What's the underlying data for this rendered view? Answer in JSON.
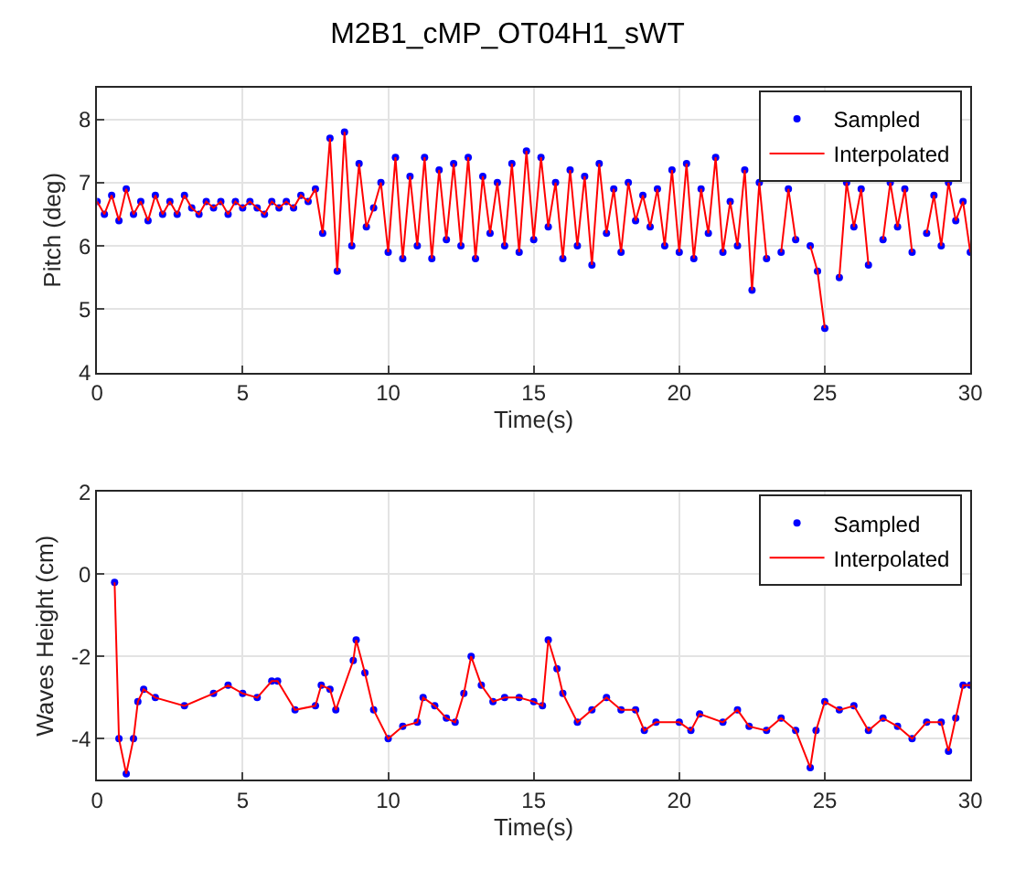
{
  "chart_data": [
    {
      "type": "line",
      "title": "M2B1_cMP_OT04H1_sWT",
      "xlabel": "Time(s)",
      "ylabel": "Pitch (deg)",
      "x": [
        0,
        0.25,
        0.5,
        0.75,
        1,
        1.25,
        1.5,
        1.75,
        2,
        2.25,
        2.5,
        2.75,
        3,
        3.25,
        3.5,
        3.75,
        4,
        4.25,
        4.5,
        4.75,
        5,
        5.25,
        5.5,
        5.75,
        6,
        6.25,
        6.5,
        6.75,
        7,
        7.25,
        7.5,
        7.75,
        8,
        8.25,
        8.5,
        8.75,
        9,
        9.25,
        9.5,
        9.75,
        10,
        10.25,
        10.5,
        10.75,
        11,
        11.25,
        11.5,
        11.75,
        12,
        12.25,
        12.5,
        12.75,
        13,
        13.25,
        13.5,
        13.75,
        14,
        14.25,
        14.5,
        14.75,
        15,
        15.25,
        15.5,
        15.75,
        16,
        16.25,
        16.5,
        16.75,
        17,
        17.25,
        17.5,
        17.75,
        18,
        18.25,
        18.5,
        18.75,
        19,
        19.25,
        19.5,
        19.75,
        20,
        20.25,
        20.5,
        20.75,
        21,
        21.25,
        21.5,
        21.75,
        22,
        22.25,
        22.5,
        22.75,
        23,
        23.25,
        23.5,
        23.75,
        24,
        24.25,
        24.5,
        24.75,
        25,
        25.25,
        25.5,
        25.75,
        26,
        26.25,
        26.5,
        26.75,
        27,
        27.25,
        27.5,
        27.75,
        28,
        28.25,
        28.5,
        28.75,
        29,
        29.25,
        29.5,
        29.75,
        30
      ],
      "series": [
        {
          "name": "Sampled",
          "type": "scatter",
          "marker": "circle",
          "color": "#0000ff",
          "values": [
            6.7,
            6.5,
            6.8,
            6.4,
            6.9,
            6.5,
            6.7,
            6.4,
            6.8,
            6.5,
            6.7,
            6.5,
            6.8,
            6.6,
            6.5,
            6.7,
            6.6,
            6.7,
            6.5,
            6.7,
            6.6,
            6.7,
            6.6,
            6.5,
            6.7,
            6.6,
            6.7,
            6.6,
            6.8,
            6.7,
            6.9,
            6.2,
            7.7,
            5.6,
            7.8,
            6.0,
            7.3,
            6.3,
            6.6,
            7.0,
            5.9,
            7.4,
            5.8,
            7.1,
            6.0,
            7.4,
            5.8,
            7.2,
            6.1,
            7.3,
            6.0,
            7.4,
            5.8,
            7.1,
            6.2,
            7.0,
            6.0,
            7.3,
            5.9,
            7.5,
            6.1,
            7.4,
            6.3,
            7.0,
            5.8,
            7.2,
            6.0,
            7.1,
            5.7,
            7.3,
            6.2,
            6.9,
            5.9,
            7.0,
            6.4,
            6.8,
            6.3,
            6.9,
            6.0,
            7.2,
            5.9,
            7.3,
            5.8,
            6.9,
            6.2,
            7.4,
            5.9,
            6.7,
            6.0,
            7.2,
            5.3,
            7.0,
            5.8,
            null,
            5.9,
            6.9,
            6.1,
            null,
            6.0,
            5.6,
            4.7,
            null,
            5.5,
            7.0,
            6.3,
            6.9,
            5.7,
            null,
            6.1,
            7.0,
            6.3,
            6.9,
            5.9,
            null,
            6.2,
            6.8,
            6.0,
            7.0,
            6.4,
            6.7,
            5.9
          ]
        },
        {
          "name": "Interpolated",
          "type": "line",
          "line_style": "solid",
          "color": "#ff0000",
          "values": [
            6.7,
            6.5,
            6.8,
            6.4,
            6.9,
            6.5,
            6.7,
            6.4,
            6.8,
            6.5,
            6.7,
            6.5,
            6.8,
            6.6,
            6.5,
            6.7,
            6.6,
            6.7,
            6.5,
            6.7,
            6.6,
            6.7,
            6.6,
            6.5,
            6.7,
            6.6,
            6.7,
            6.6,
            6.8,
            6.7,
            6.9,
            6.2,
            7.7,
            5.6,
            7.8,
            6.0,
            7.3,
            6.3,
            6.6,
            7.0,
            5.9,
            7.4,
            5.8,
            7.1,
            6.0,
            7.4,
            5.8,
            7.2,
            6.1,
            7.3,
            6.0,
            7.4,
            5.8,
            7.1,
            6.2,
            7.0,
            6.0,
            7.3,
            5.9,
            7.5,
            6.1,
            7.4,
            6.3,
            7.0,
            5.8,
            7.2,
            6.0,
            7.1,
            5.7,
            7.3,
            6.2,
            6.9,
            5.9,
            7.0,
            6.4,
            6.8,
            6.3,
            6.9,
            6.0,
            7.2,
            5.9,
            7.3,
            5.8,
            6.9,
            6.2,
            7.4,
            5.9,
            6.7,
            6.0,
            7.2,
            5.3,
            7.0,
            5.8,
            null,
            5.9,
            6.9,
            6.1,
            null,
            6.0,
            5.6,
            4.7,
            null,
            5.5,
            7.0,
            6.3,
            6.9,
            5.7,
            null,
            6.1,
            7.0,
            6.3,
            6.9,
            5.9,
            null,
            6.2,
            6.8,
            6.0,
            7.0,
            6.4,
            6.7,
            5.9
          ]
        }
      ],
      "xlim": [
        0,
        30
      ],
      "xticks": [
        0,
        5,
        10,
        15,
        20,
        25,
        30
      ],
      "ylim": [
        4,
        8.5
      ],
      "yticks": [
        4,
        5,
        6,
        7,
        8
      ],
      "grid": true,
      "legend": "top right"
    },
    {
      "type": "line",
      "xlabel": "Time(s)",
      "ylabel": "Waves Height (cm)",
      "x": [
        0.6,
        0.75,
        1.0,
        1.25,
        1.4,
        1.6,
        2,
        3,
        4,
        4.5,
        5,
        5.5,
        6,
        6.2,
        6.8,
        7.5,
        7.7,
        8,
        8.2,
        8.8,
        8.9,
        9.2,
        9.5,
        10,
        10.5,
        11,
        11.2,
        11.6,
        12,
        12.3,
        12.6,
        12.85,
        13.2,
        13.6,
        14,
        14.5,
        15,
        15.3,
        15.5,
        15.8,
        16,
        16.5,
        17,
        17.5,
        18,
        18.5,
        18.8,
        19.2,
        20,
        20.4,
        20.7,
        21.5,
        22,
        22.4,
        23,
        23.5,
        24,
        24.5,
        24.7,
        25,
        25.5,
        26,
        26.5,
        27,
        27.5,
        28,
        28.5,
        29,
        29.25,
        29.5,
        29.75,
        30
      ],
      "series": [
        {
          "name": "Sampled",
          "type": "scatter",
          "marker": "circle",
          "color": "#0000ff",
          "values": [
            -0.2,
            -4.0,
            -4.85,
            -4.0,
            -3.1,
            -2.8,
            -3.0,
            -3.2,
            -2.9,
            -2.7,
            -2.9,
            -3.0,
            -2.6,
            -2.6,
            -3.3,
            -3.2,
            -2.7,
            -2.8,
            -3.3,
            -2.1,
            -1.6,
            -2.4,
            -3.3,
            -4.0,
            -3.7,
            -3.6,
            -3.0,
            -3.2,
            -3.5,
            -3.6,
            -2.9,
            -2.0,
            -2.7,
            -3.1,
            -3.0,
            -3.0,
            -3.1,
            -3.2,
            -1.6,
            -2.3,
            -2.9,
            -3.6,
            -3.3,
            -3.0,
            -3.3,
            -3.3,
            -3.8,
            -3.6,
            -3.6,
            -3.8,
            -3.4,
            -3.6,
            -3.3,
            -3.7,
            -3.8,
            -3.5,
            -3.8,
            -4.7,
            -3.8,
            -3.1,
            -3.3,
            -3.2,
            -3.8,
            -3.5,
            -3.7,
            -4.0,
            -3.6,
            -3.6,
            -4.3,
            -3.5,
            -2.7,
            -2.7
          ]
        },
        {
          "name": "Interpolated",
          "type": "line",
          "line_style": "solid",
          "color": "#ff0000",
          "values": [
            -0.2,
            -4.0,
            -4.85,
            -4.0,
            -3.1,
            -2.8,
            -3.0,
            -3.2,
            -2.9,
            -2.7,
            -2.9,
            -3.0,
            -2.6,
            -2.6,
            -3.3,
            -3.2,
            -2.7,
            -2.8,
            -3.3,
            -2.1,
            -1.6,
            -2.4,
            -3.3,
            -4.0,
            -3.7,
            -3.6,
            -3.0,
            -3.2,
            -3.5,
            -3.6,
            -2.9,
            -2.0,
            -2.7,
            -3.1,
            -3.0,
            -3.0,
            -3.1,
            -3.2,
            -1.6,
            -2.3,
            -2.9,
            -3.6,
            -3.3,
            -3.0,
            -3.3,
            -3.3,
            -3.8,
            -3.6,
            -3.6,
            -3.8,
            -3.4,
            -3.6,
            -3.3,
            -3.7,
            -3.8,
            -3.5,
            -3.8,
            -4.7,
            -3.8,
            -3.1,
            -3.3,
            -3.2,
            -3.8,
            -3.5,
            -3.7,
            -4.0,
            -3.6,
            -3.6,
            -4.3,
            -3.5,
            -2.7,
            -2.7
          ]
        }
      ],
      "xlim": [
        0,
        30
      ],
      "xticks": [
        0,
        5,
        10,
        15,
        20,
        25,
        30
      ],
      "ylim": [
        -5,
        2
      ],
      "yticks": [
        -4,
        -2,
        0,
        2
      ],
      "grid": true,
      "legend": "top right"
    }
  ]
}
